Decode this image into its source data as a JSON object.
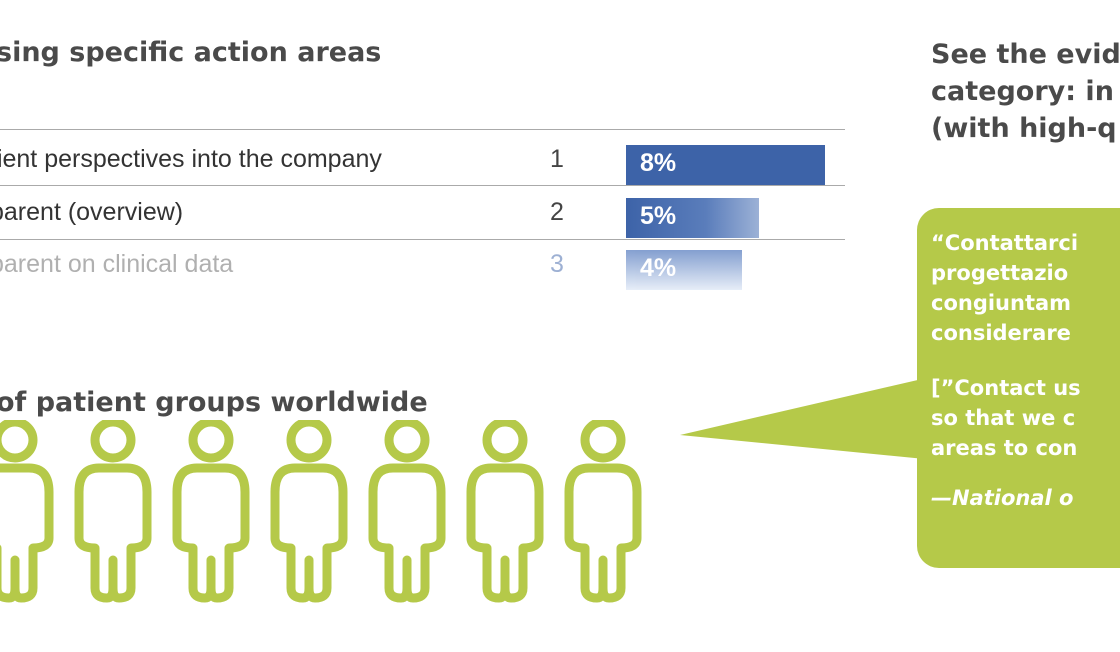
{
  "left": {
    "areas_title": "sing specific action areas",
    "rows": [
      {
        "label": "tient perspectives into the company",
        "rank": "1",
        "percent": "8%",
        "value": 8
      },
      {
        "label": "parent (overview)",
        "rank": "2",
        "percent": "5%",
        "value": 5
      },
      {
        "label": "parent on clinical data",
        "rank": "3",
        "percent": "4%",
        "value": 4
      }
    ],
    "groups_title": "of patient groups worldwide",
    "figure_count": 7,
    "figure_color": "#b5c949"
  },
  "right": {
    "heading_lines": [
      "See the evid",
      "category:  in",
      "(with high-q"
    ],
    "quote_italian": [
      "“Contattarci",
      "progettazio",
      "congiuntam",
      "considerare"
    ],
    "quote_english": [
      "[”Contact us",
      "so that we c",
      "areas to con"
    ],
    "source": "—National o",
    "bubble_color": "#b5c949"
  },
  "colors": {
    "bar": "#3d63a8",
    "heading": "#4a4a4a"
  }
}
